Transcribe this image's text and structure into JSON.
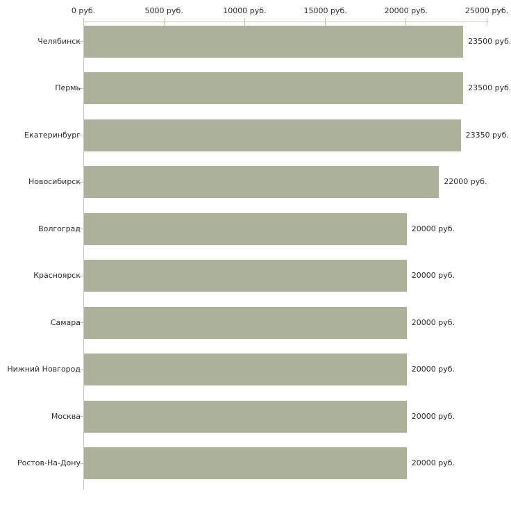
{
  "chart_data": {
    "type": "bar",
    "orientation": "horizontal",
    "title": "",
    "xlabel": "",
    "ylabel": "",
    "unit_suffix": " руб.",
    "categories": [
      "Челябинск",
      "Пермь",
      "Екатеринбург",
      "Новосибирск",
      "Волгоград",
      "Красноярск",
      "Самара",
      "Нижний Новгород",
      "Москва",
      "Ростов-На-Дону"
    ],
    "values": [
      23500,
      23500,
      23350,
      22000,
      20000,
      20000,
      20000,
      20000,
      20000,
      20000
    ],
    "value_labels": [
      "23500 руб.",
      "23500 руб.",
      "23350 руб.",
      "22000 руб.",
      "20000 руб.",
      "20000 руб.",
      "20000 руб.",
      "20000 руб.",
      "20000 руб.",
      "20000 руб."
    ],
    "x_axis": {
      "position": "top",
      "range": [
        0,
        25000
      ],
      "ticks": [
        0,
        5000,
        10000,
        15000,
        20000,
        25000
      ],
      "tick_labels": [
        "0 руб.",
        "5000 руб.",
        "10000 руб.",
        "15000 руб.",
        "20000 руб.",
        "25000 руб."
      ]
    },
    "grid": "off",
    "legend": "none",
    "colors": {
      "bar": "#abb299",
      "axis_line": "#c6c6bb",
      "y_axis_line": "#c6c6c6",
      "tick": "#c2c89e",
      "text": "#2d2d2d",
      "background": "#ffffff"
    }
  }
}
